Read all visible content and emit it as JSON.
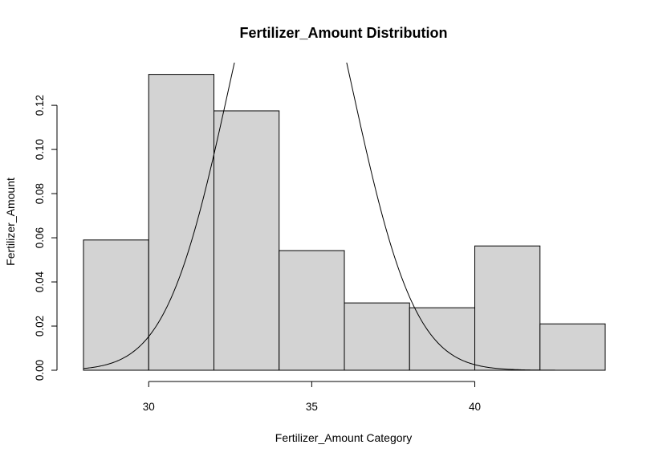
{
  "chart_data": {
    "type": "bar",
    "title": "Fertilizer_Amount Distribution",
    "xlabel": "Fertilizer_Amount Category",
    "ylabel": "Fertilizer_Amount",
    "bins": [
      {
        "x0": 28,
        "x1": 30,
        "density": 0.059
      },
      {
        "x0": 30,
        "x1": 32,
        "density": 0.134
      },
      {
        "x0": 32,
        "x1": 34,
        "density": 0.1175
      },
      {
        "x0": 34,
        "x1": 36,
        "density": 0.0542
      },
      {
        "x0": 36,
        "x1": 38,
        "density": 0.0305
      },
      {
        "x0": 38,
        "x1": 40,
        "density": 0.0283
      },
      {
        "x0": 40,
        "x1": 42,
        "density": 0.0563
      },
      {
        "x0": 42,
        "x1": 44,
        "density": 0.021
      }
    ],
    "curve": {
      "type": "normal-density",
      "mean": 34.35,
      "sd": 1.9
    },
    "xlim": [
      28,
      44
    ],
    "ylim": [
      0,
      0.1335
    ],
    "xticks": [
      30,
      35,
      40
    ],
    "yticks": [
      0.0,
      0.02,
      0.04,
      0.06,
      0.08,
      0.1,
      0.12
    ],
    "ytick_labels": [
      "0.00",
      "0.02",
      "0.04",
      "0.06",
      "0.08",
      "0.10",
      "0.12"
    ],
    "grid": false,
    "legend": "none"
  }
}
